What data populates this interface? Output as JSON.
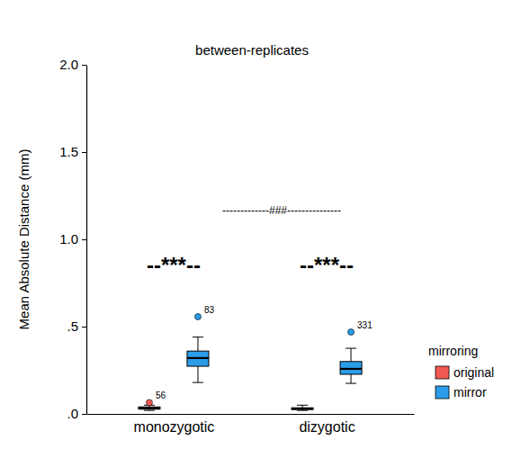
{
  "chart_data": {
    "type": "boxplot",
    "title": "between-replicates",
    "y_label": "Mean Absolute Distance (mm)",
    "categories": [
      "monozygotic",
      "dizygotic"
    ],
    "legend_title": "mirroring",
    "legend": "right",
    "ylim": [
      0,
      2.0
    ],
    "yticks": [
      {
        "value": 0,
        "label": ".0"
      },
      {
        "value": 0.5,
        "label": ".5"
      },
      {
        "value": 1.0,
        "label": "1.0"
      },
      {
        "value": 1.5,
        "label": "1.5"
      },
      {
        "value": 2.0,
        "label": "2.0"
      }
    ],
    "series": [
      {
        "name": "original",
        "color": "#f15a52",
        "boxes": [
          {
            "min": 0.02,
            "q1": 0.027,
            "median": 0.033,
            "q3": 0.04,
            "max": 0.05,
            "outliers": [
              {
                "value": 0.065,
                "id": "56"
              }
            ]
          },
          {
            "min": 0.02,
            "q1": 0.025,
            "median": 0.03,
            "q3": 0.035,
            "max": 0.05,
            "outliers": []
          }
        ]
      },
      {
        "name": "mirror",
        "color": "#2b9de8",
        "boxes": [
          {
            "min": 0.18,
            "q1": 0.273,
            "median": 0.32,
            "q3": 0.36,
            "max": 0.44,
            "outliers": [
              {
                "value": 0.557,
                "id": "83"
              }
            ]
          },
          {
            "min": 0.175,
            "q1": 0.227,
            "median": 0.258,
            "q3": 0.3,
            "max": 0.376,
            "outliers": [
              {
                "value": 0.469,
                "id": "331"
              }
            ]
          }
        ]
      }
    ],
    "annotations": [
      {
        "text": "--***--",
        "category": "monozygotic"
      },
      {
        "text": "--***--",
        "category": "dizygotic"
      },
      {
        "text": "-------------###---------------"
      }
    ]
  }
}
